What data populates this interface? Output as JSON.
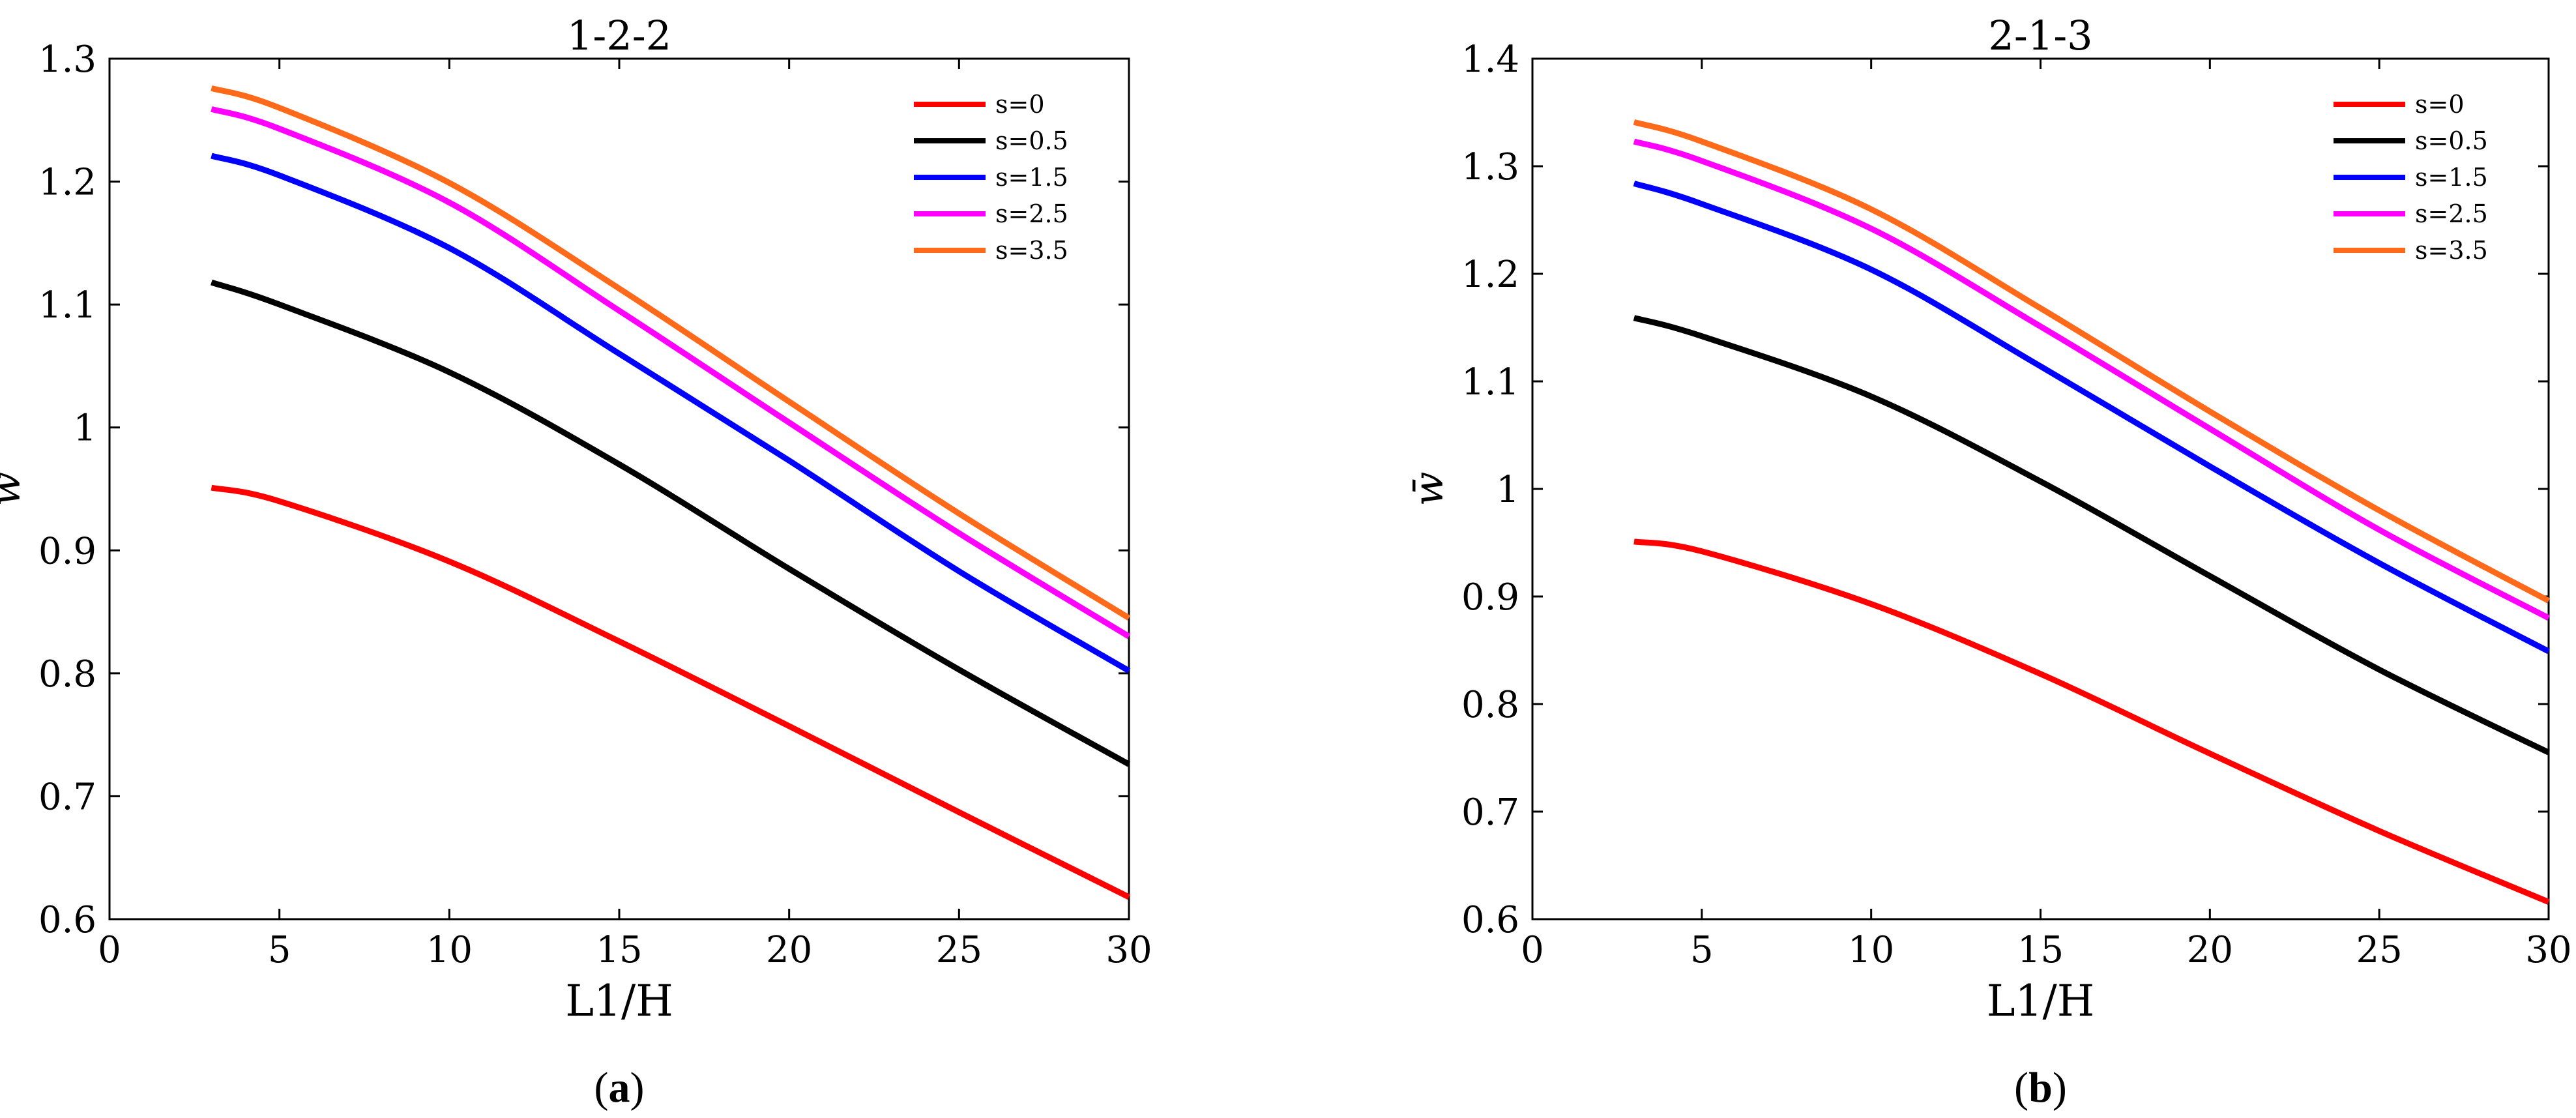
{
  "chart_data": [
    {
      "type": "line",
      "panel": "a",
      "title": "1-2-2",
      "xlabel": "L1/H",
      "ylabel": "w̄",
      "xlim": [
        0,
        30
      ],
      "ylim": [
        0.6,
        1.3
      ],
      "xticks": [
        0,
        5,
        10,
        15,
        20,
        25,
        30
      ],
      "yticks": [
        0.6,
        0.7,
        0.8,
        0.9,
        1,
        1.1,
        1.2,
        1.3
      ],
      "xtick_labels": [
        "0",
        "5",
        "10",
        "15",
        "20",
        "25",
        "30"
      ],
      "ytick_labels": [
        "0.6",
        "0.7",
        "0.8",
        "0.9",
        "1",
        "1.1",
        "1.2",
        "1.3"
      ],
      "grid": false,
      "legend_position": "top-right",
      "x": [
        3,
        5,
        10,
        15,
        20,
        25,
        30
      ],
      "series": [
        {
          "name": "s=0",
          "color": "#ff0000",
          "values": [
            0.951,
            0.94,
            0.891,
            0.826,
            0.757,
            0.687,
            0.618
          ]
        },
        {
          "name": "s=0.5",
          "color": "#000000",
          "values": [
            1.118,
            1.1,
            1.045,
            0.97,
            0.885,
            0.803,
            0.726
          ]
        },
        {
          "name": "s=1.5",
          "color": "#0000ff",
          "values": [
            1.221,
            1.205,
            1.146,
            1.06,
            0.973,
            0.883,
            0.802
          ]
        },
        {
          "name": "s=2.5",
          "color": "#ff00ff",
          "values": [
            1.259,
            1.243,
            1.183,
            1.095,
            1.004,
            0.914,
            0.83
          ]
        },
        {
          "name": "s=3.5",
          "color": "#ff6a1a",
          "values": [
            1.276,
            1.26,
            1.199,
            1.113,
            1.021,
            0.93,
            0.845
          ]
        }
      ]
    },
    {
      "type": "line",
      "panel": "b",
      "title": "2-1-3",
      "xlabel": "L1/H",
      "ylabel": "w̄",
      "xlim": [
        0,
        30
      ],
      "ylim": [
        0.6,
        1.4
      ],
      "xticks": [
        0,
        5,
        10,
        15,
        20,
        25,
        30
      ],
      "yticks": [
        0.6,
        0.7,
        0.8,
        0.9,
        1,
        1.1,
        1.2,
        1.3,
        1.4
      ],
      "xtick_labels": [
        "0",
        "5",
        "10",
        "15",
        "20",
        "25",
        "30"
      ],
      "ytick_labels": [
        "0.6",
        "0.7",
        "0.8",
        "0.9",
        "1",
        "1.1",
        "1.2",
        "1.3",
        "1.4"
      ],
      "grid": false,
      "legend_position": "top-right",
      "x": [
        3,
        5,
        10,
        15,
        20,
        25,
        30
      ],
      "series": [
        {
          "name": "s=0",
          "color": "#ff0000",
          "values": [
            0.951,
            0.942,
            0.893,
            0.828,
            0.754,
            0.682,
            0.616
          ]
        },
        {
          "name": "s=0.5",
          "color": "#000000",
          "values": [
            1.159,
            1.142,
            1.086,
            1.007,
            0.919,
            0.832,
            0.755
          ]
        },
        {
          "name": "s=1.5",
          "color": "#0000ff",
          "values": [
            1.284,
            1.265,
            1.204,
            1.114,
            1.021,
            0.931,
            0.849
          ]
        },
        {
          "name": "s=2.5",
          "color": "#ff00ff",
          "values": [
            1.323,
            1.305,
            1.242,
            1.151,
            1.056,
            0.962,
            0.88
          ]
        },
        {
          "name": "s=3.5",
          "color": "#ff6a1a",
          "values": [
            1.341,
            1.323,
            1.26,
            1.168,
            1.072,
            0.98,
            0.896
          ]
        }
      ]
    }
  ],
  "panel_labels": [
    {
      "open": "(",
      "letter": "a",
      "close": ")"
    },
    {
      "open": "(",
      "letter": "b",
      "close": ")"
    }
  ]
}
